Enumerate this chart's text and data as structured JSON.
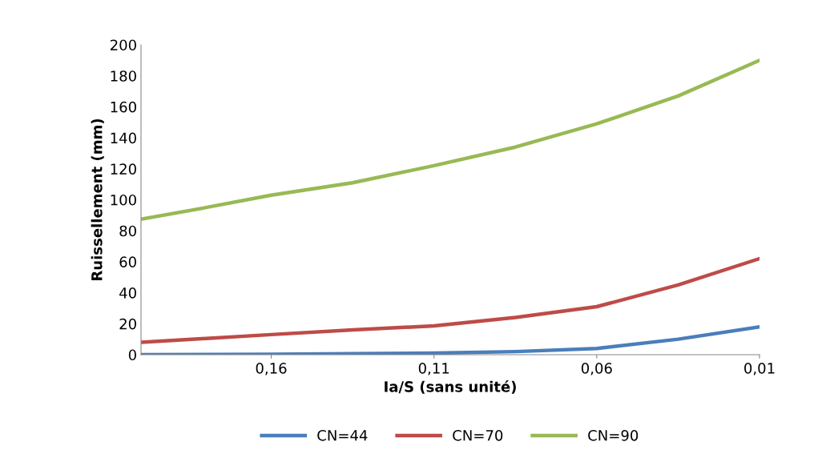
{
  "chart_data": {
    "type": "line",
    "xlabel": "Ia/S (sans unité)",
    "ylabel": "Ruissellement (mm)",
    "x": [
      0.2,
      0.18,
      0.16,
      0.135,
      0.11,
      0.085,
      0.06,
      0.035,
      0.01
    ],
    "series": [
      {
        "name": "CN=44",
        "color": "#4a7ebb",
        "values": [
          0,
          0.1,
          0.3,
          0.6,
          1,
          2,
          4,
          10,
          18
        ]
      },
      {
        "name": "CN=70",
        "color": "#be4b48",
        "values": [
          8,
          10.5,
          13,
          16,
          18.6,
          24,
          31,
          45,
          62
        ]
      },
      {
        "name": "CN=90",
        "color": "#98b954",
        "values": [
          87.5,
          95,
          103,
          111,
          122,
          134,
          149,
          167,
          190
        ]
      }
    ],
    "xlim": [
      0.2,
      0.01
    ],
    "xticks": [
      {
        "value": 0.16,
        "label": "0,16"
      },
      {
        "value": 0.11,
        "label": "0,11"
      },
      {
        "value": 0.06,
        "label": "0,06"
      },
      {
        "value": 0.01,
        "label": "0,01"
      }
    ],
    "ylim": [
      0,
      200
    ],
    "yticks": [
      0,
      20,
      40,
      60,
      80,
      100,
      120,
      140,
      160,
      180,
      200
    ],
    "grid": false,
    "legend": "bottom",
    "marker": "none",
    "line_style": "solid"
  }
}
